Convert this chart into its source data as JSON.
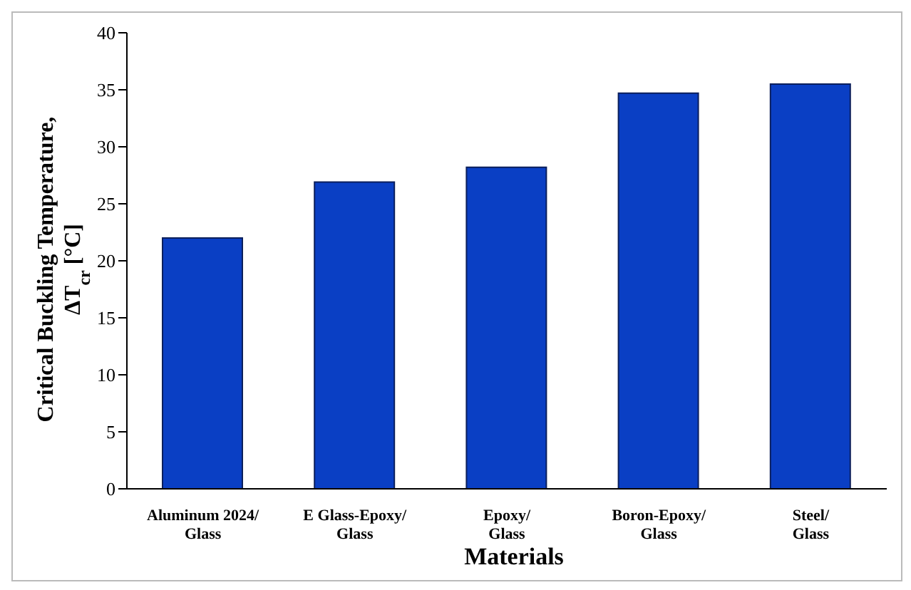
{
  "chart_data": {
    "type": "bar",
    "xlabel": "Materials",
    "ylabel": "Critical Buckling Temperature, ΔT$_{cr}$ [°C]",
    "categories": [
      "Aluminum 2024/Glass",
      "E Glass-Epoxy/Glass",
      "Epoxy/Glass",
      "Boron-Epoxy/Glass",
      "Steel/Glass"
    ],
    "values": [
      22.0,
      26.9,
      28.2,
      34.7,
      35.5
    ],
    "color": "#0a3fc4",
    "ylim": [
      0,
      40
    ],
    "yticks": [
      0,
      5,
      10,
      15,
      20,
      25,
      30,
      35,
      40
    ],
    "grid": false
  }
}
